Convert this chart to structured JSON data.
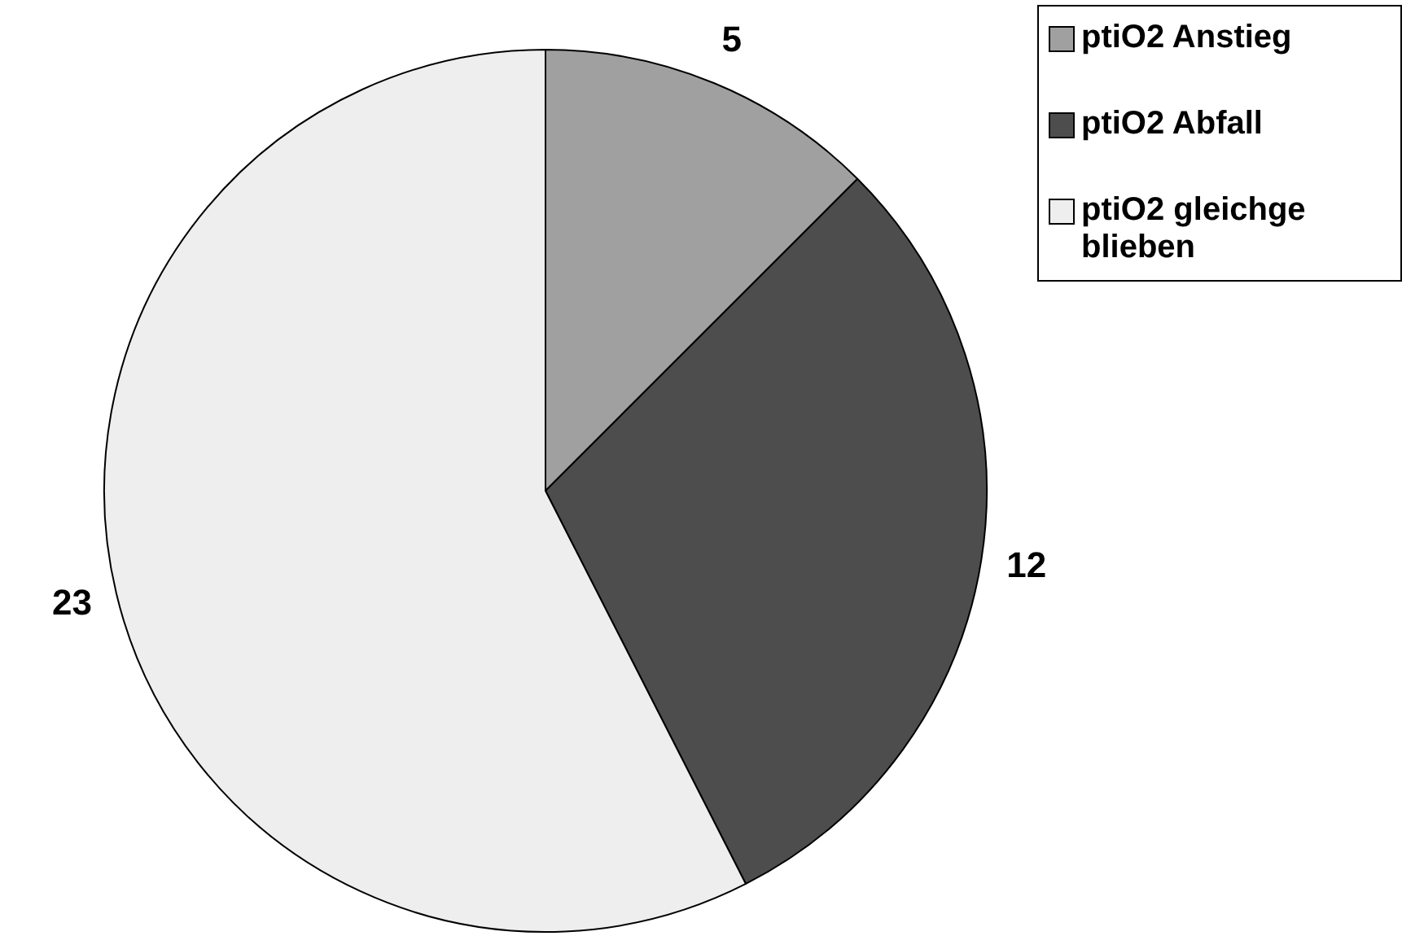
{
  "chart_data": {
    "type": "pie",
    "categories": [
      "ptiO2 Anstieg",
      "ptiO2 Abfall",
      "ptiO2 gleichgeblieben"
    ],
    "values": [
      5,
      12,
      23
    ],
    "colors": [
      "#a0a0a0",
      "#4d4d4d",
      "#eeeeee"
    ],
    "data_labels": true,
    "legend": "right"
  }
}
